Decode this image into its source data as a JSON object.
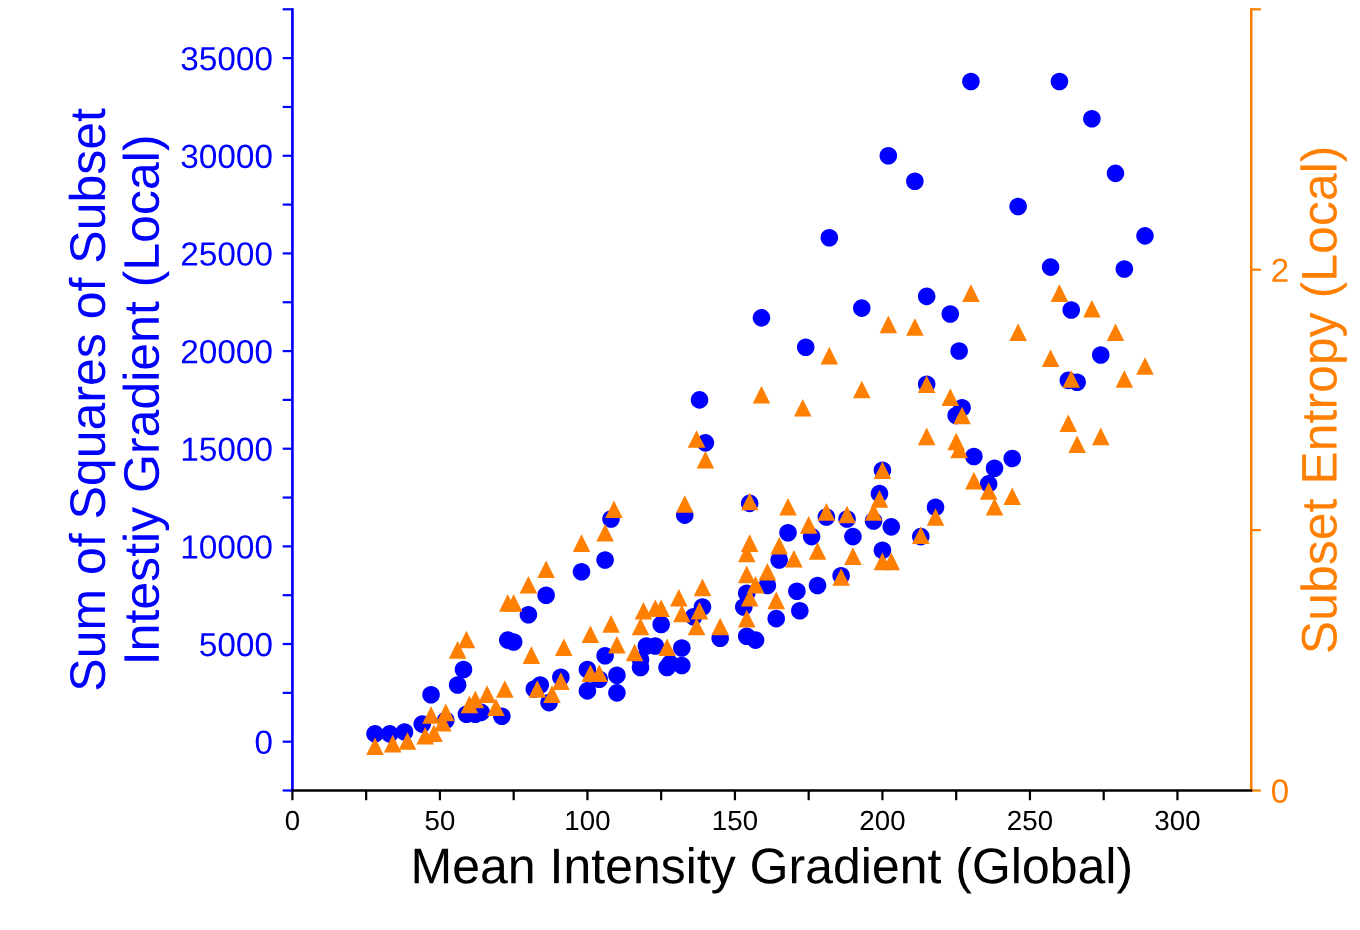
{
  "chart_data": {
    "type": "scatter",
    "xlabel": "Mean Intensity Gradient (Global)",
    "ylabel": "Sum of Squares of Subset\nIntestiy Gradient (Local)",
    "y2label": "Subset Entropy (Local)",
    "xlim": [
      0,
      325
    ],
    "xticks": [
      0,
      {
        "value": 25,
        "label": null
      },
      50,
      {
        "value": 75,
        "label": null
      },
      100,
      {
        "value": 125,
        "label": null
      },
      150,
      {
        "value": 175,
        "label": null
      },
      200,
      {
        "value": 225,
        "label": null
      },
      250,
      {
        "value": 275,
        "label": null
      },
      300
    ],
    "ylim": [
      -2500,
      37500
    ],
    "yticks": [
      {
        "value": -2500,
        "label": null
      },
      0,
      {
        "value": 2500,
        "label": null
      },
      5000,
      {
        "value": 7500,
        "label": null
      },
      10000,
      {
        "value": 12500,
        "label": null
      },
      15000,
      {
        "value": 17500,
        "label": null
      },
      20000,
      {
        "value": 22500,
        "label": null
      },
      25000,
      {
        "value": 27500,
        "label": null
      },
      30000,
      {
        "value": 32500,
        "label": null
      },
      35000,
      {
        "value": 37500,
        "label": null
      }
    ],
    "y2lim": [
      0,
      3
    ],
    "y2ticks": [
      0,
      {
        "value": 1,
        "label": null
      },
      2,
      {
        "value": 3,
        "label": null
      }
    ],
    "grid": false,
    "legend": false,
    "series": [
      {
        "color": "#0000ff",
        "marker": "circle",
        "x": [
          28,
          33,
          38,
          44,
          47,
          52,
          56,
          58,
          59,
          62,
          64,
          71,
          73,
          75,
          80,
          82,
          86,
          84,
          87,
          91,
          98,
          100,
          100,
          104,
          106,
          106,
          108,
          110,
          110,
          118,
          118,
          120,
          123,
          125,
          127,
          128,
          132,
          132,
          133,
          136,
          138,
          139,
          140,
          145,
          154,
          153,
          155,
          154,
          157,
          159,
          161,
          164,
          165,
          168,
          171,
          172,
          174,
          176,
          178,
          181,
          182,
          186,
          188,
          190,
          193,
          197,
          199,
          200,
          200,
          202,
          203,
          211,
          213,
          215,
          215,
          218,
          223,
          226,
          227,
          225,
          231,
          230,
          236,
          238,
          244,
          246,
          257,
          260,
          264,
          263,
          266,
          271,
          274,
          279,
          282,
          289
        ],
        "values": [
          400,
          400,
          500,
          900,
          2400,
          1100,
          2900,
          3700,
          1400,
          1400,
          1500,
          1300,
          5200,
          5100,
          6500,
          2700,
          7500,
          2900,
          2000,
          3300,
          8700,
          3700,
          2600,
          3200,
          9300,
          4400,
          11400,
          3400,
          2500,
          3800,
          4200,
          4900,
          4900,
          6000,
          3800,
          4000,
          3900,
          4800,
          11600,
          6400,
          17500,
          6900,
          15300,
          5300,
          7600,
          6900,
          12200,
          5400,
          5200,
          21700,
          8000,
          6300,
          9300,
          10700,
          7700,
          6700,
          20200,
          10500,
          8000,
          11500,
          25800,
          8500,
          11400,
          10500,
          22200,
          11300,
          12700,
          13900,
          9800,
          30000,
          11000,
          28700,
          10500,
          22800,
          18300,
          12000,
          21900,
          20000,
          17100,
          16700,
          14600,
          33800,
          13200,
          14000,
          14500,
          27400,
          24300,
          33800,
          22100,
          18500,
          18400,
          31900,
          19800,
          29100,
          24200,
          25900
        ]
      },
      {
        "color": "#ff7f00",
        "marker": "triangle",
        "axis": "y2",
        "x": [
          28,
          34,
          39,
          45,
          47,
          48,
          52,
          51,
          56,
          59,
          60,
          62,
          66,
          69,
          72,
          73,
          75,
          80,
          81,
          83,
          86,
          88,
          91,
          92,
          98,
          101,
          101,
          104,
          106,
          108,
          109,
          110,
          116,
          118,
          119,
          123,
          125,
          127,
          131,
          133,
          132,
          137,
          138,
          137,
          139,
          140,
          145,
          154,
          155,
          154,
          154,
          155,
          155,
          157,
          159,
          161,
          164,
          165,
          168,
          170,
          173,
          175,
          178,
          181,
          182,
          186,
          188,
          190,
          193,
          197,
          199,
          200,
          200,
          203,
          202,
          211,
          213,
          215,
          215,
          218,
          223,
          225,
          226,
          227,
          230,
          231,
          236,
          238,
          244,
          246,
          257,
          260,
          263,
          264,
          266,
          271,
          274,
          279,
          282,
          289
        ],
        "values": [
          0.17,
          0.18,
          0.19,
          0.21,
          0.29,
          0.22,
          0.3,
          0.26,
          0.54,
          0.58,
          0.33,
          0.35,
          0.37,
          0.32,
          0.39,
          0.72,
          0.72,
          0.79,
          0.52,
          0.39,
          0.85,
          0.37,
          0.42,
          0.55,
          0.95,
          0.45,
          0.6,
          0.45,
          0.99,
          0.64,
          1.08,
          0.56,
          0.53,
          0.63,
          0.69,
          0.7,
          0.7,
          0.55,
          0.74,
          1.1,
          0.68,
          0.63,
          0.69,
          1.35,
          0.78,
          1.27,
          0.63,
          0.66,
          0.74,
          0.91,
          0.83,
          1.11,
          0.95,
          0.79,
          1.52,
          0.84,
          0.73,
          0.94,
          1.09,
          0.89,
          1.47,
          1.02,
          0.92,
          1.07,
          1.67,
          0.82,
          1.06,
          0.9,
          1.54,
          1.07,
          1.12,
          1.23,
          0.88,
          0.88,
          1.79,
          1.78,
          0.98,
          1.56,
          1.36,
          1.05,
          1.51,
          1.34,
          1.31,
          1.44,
          1.91,
          1.19,
          1.15,
          1.09,
          1.13,
          1.76,
          1.66,
          1.91,
          1.41,
          1.58,
          1.33,
          1.85,
          1.36,
          1.76,
          1.58,
          1.63
        ]
      }
    ]
  }
}
